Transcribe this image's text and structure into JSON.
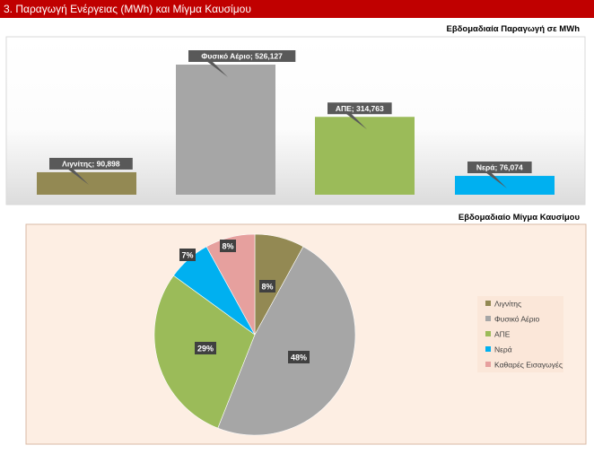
{
  "header": {
    "title": "3. Παραγωγή Ενέργειας (MWh) και Μίγμα Καυσίμου"
  },
  "bar_section": {
    "title": "Εβδομαδιαία Παραγωγή σε MWh"
  },
  "pie_section": {
    "title": "Εβδομαδιαίο Μίγμα Καυσίμου"
  },
  "chart_data": [
    {
      "type": "bar",
      "title": "Εβδομαδιαία Παραγωγή σε MWh",
      "categories": [
        "Λιγνίτης",
        "Φυσικό Αέριο",
        "ΑΠΕ",
        "Νερά"
      ],
      "values": [
        90898,
        526127,
        314763,
        76074
      ],
      "data_labels": [
        "Λιγνίτης; 90,898",
        "Φυσικό Αέριο; 526,127",
        "ΑΠΕ; 314,763",
        "Νερά; 76,074"
      ],
      "colors": [
        "#938953",
        "#a6a6a6",
        "#9bbb59",
        "#00b0f0"
      ],
      "ylim": [
        0,
        526127
      ],
      "grid": false,
      "legend": "none"
    },
    {
      "type": "pie",
      "title": "Εβδομαδιαίο Μίγμα Καυσίμου",
      "labels": [
        "Λιγνίτης",
        "Φυσικό Αέριο",
        "ΑΠΕ",
        "Νερά",
        "Καθαρές Εισαγωγές"
      ],
      "values": [
        8,
        48,
        29,
        7,
        8
      ],
      "data_labels": [
        "8%",
        "48%",
        "29%",
        "7%",
        "8%"
      ],
      "colors": [
        "#938953",
        "#a6a6a6",
        "#9bbb59",
        "#00b0f0",
        "#e6a09e"
      ],
      "legend": "right"
    }
  ]
}
